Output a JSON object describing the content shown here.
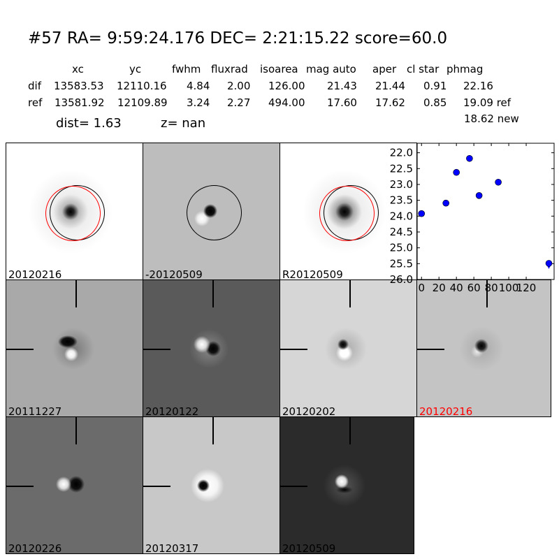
{
  "header": {
    "title": "#57   RA= 9:59:24.176 DEC= 2:21:15.22      score=60.0"
  },
  "table": {
    "columns": [
      "xc",
      "yc",
      "fwhm",
      "fluxrad",
      "isoarea",
      "mag auto",
      "aper",
      "cl star",
      "phmag"
    ],
    "rows": [
      {
        "label": "dif",
        "values": [
          "13583.53",
          "12110.16",
          "4.84",
          "2.00",
          "126.00",
          "21.43",
          "21.44",
          "0.91",
          "22.16"
        ]
      },
      {
        "label": "ref",
        "values": [
          "13581.92",
          "12109.89",
          "3.24",
          "2.27",
          "494.00",
          "17.60",
          "17.62",
          "0.85",
          "19.09 ref"
        ]
      }
    ],
    "extra": "18.62 new",
    "dist": "dist=  1.63",
    "z": "z=   nan"
  },
  "panels": [
    {
      "label": "20120216",
      "bg": "#ffffff"
    },
    {
      "label": "-20120509",
      "bg": "#bdbdbd"
    },
    {
      "label": "R20120509",
      "bg": "#ffffff"
    },
    {
      "label": "20111227",
      "bg": "#a9a9a9"
    },
    {
      "label": "20120122",
      "bg": "#5a5a5a"
    },
    {
      "label": "20120202",
      "bg": "#d6d6d6"
    },
    {
      "label": "20120216",
      "bg": "#c4c4c4",
      "color": "#ff0000"
    },
    {
      "label": "20120226",
      "bg": "#6b6b6b"
    },
    {
      "label": "20120317",
      "bg": "#c8c8c8"
    },
    {
      "label": "20120509",
      "bg": "#2b2b2b"
    }
  ],
  "chart_data": {
    "type": "scatter",
    "ylim": [
      26.0,
      21.7
    ],
    "xlim": [
      -5,
      152
    ],
    "yticks": [
      "22.0",
      "22.5",
      "23.0",
      "23.5",
      "24.0",
      "24.5",
      "25.0",
      "25.5",
      "26.0"
    ],
    "xticks": [
      "0",
      "20",
      "40",
      "60",
      "80",
      "100",
      "120"
    ],
    "color": "#0000ff",
    "points": [
      {
        "x": 0,
        "y": 23.92
      },
      {
        "x": 28,
        "y": 23.59
      },
      {
        "x": 40,
        "y": 22.62
      },
      {
        "x": 55,
        "y": 22.18
      },
      {
        "x": 66,
        "y": 23.35
      },
      {
        "x": 88,
        "y": 22.93
      },
      {
        "x": 146,
        "y": 25.49
      }
    ],
    "limits": [
      {
        "x": 146,
        "y": 25.6,
        "marker": "triangle-down"
      }
    ]
  }
}
